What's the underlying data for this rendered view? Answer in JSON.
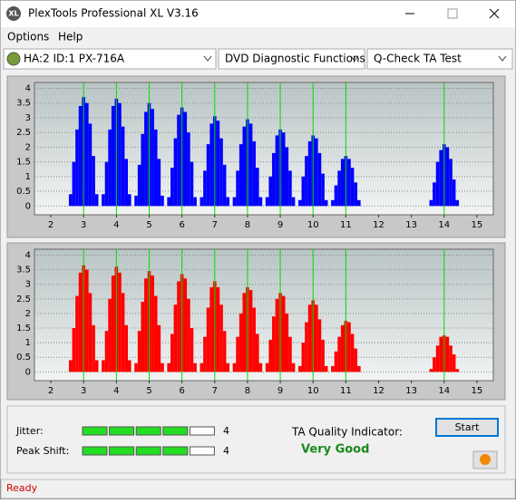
{
  "window": {
    "icon": "XL",
    "title": "PlexTools Professional XL V3.16"
  },
  "menu": [
    "Options",
    "Help"
  ],
  "toolbar": {
    "drive": "HA:2 ID:1  PX-716A",
    "function": "DVD Diagnostic Functions",
    "test": "Q-Check TA Test"
  },
  "results": {
    "jitter_label": "Jitter:",
    "jitter": 4,
    "peak_shift_label": "Peak Shift:",
    "peak_shift": 4,
    "ta_label": "TA Quality Indicator:",
    "ta_value": "Very Good"
  },
  "buttons": {
    "start": "Start"
  },
  "status": "Ready",
  "chart_data": [
    {
      "type": "bar",
      "color": "#0000ff",
      "marker_color": "#00dd00",
      "x": [
        2.6,
        2.7,
        2.8,
        2.9,
        3.0,
        3.1,
        3.2,
        3.3,
        3.4,
        3.6,
        3.7,
        3.8,
        3.9,
        4.0,
        4.1,
        4.2,
        4.3,
        4.4,
        4.6,
        4.7,
        4.8,
        4.9,
        5.0,
        5.1,
        5.2,
        5.3,
        5.4,
        5.6,
        5.7,
        5.8,
        5.9,
        6.0,
        6.1,
        6.2,
        6.3,
        6.4,
        6.6,
        6.7,
        6.8,
        6.9,
        7.0,
        7.1,
        7.2,
        7.3,
        7.4,
        7.6,
        7.7,
        7.8,
        7.9,
        8.0,
        8.1,
        8.2,
        8.3,
        8.4,
        8.6,
        8.7,
        8.8,
        8.9,
        9.0,
        9.1,
        9.2,
        9.3,
        9.4,
        9.6,
        9.7,
        9.8,
        9.9,
        10.0,
        10.1,
        10.2,
        10.3,
        10.4,
        10.6,
        10.7,
        10.8,
        10.9,
        11.0,
        11.1,
        11.2,
        11.3,
        11.4,
        13.6,
        13.7,
        13.8,
        13.9,
        14.0,
        14.1,
        14.2,
        14.3,
        14.4
      ],
      "values": [
        0.4,
        1.5,
        2.6,
        3.4,
        3.7,
        3.5,
        2.8,
        1.7,
        0.4,
        0.4,
        1.5,
        2.6,
        3.4,
        3.65,
        3.5,
        2.7,
        1.6,
        0.4,
        0.35,
        1.4,
        2.45,
        3.2,
        3.5,
        3.3,
        2.6,
        1.6,
        0.35,
        0.3,
        1.3,
        2.3,
        3.1,
        3.35,
        3.2,
        2.5,
        1.5,
        0.3,
        0.3,
        1.2,
        2.1,
        2.8,
        3.05,
        2.9,
        2.3,
        1.4,
        0.3,
        0.3,
        1.2,
        2.1,
        2.7,
        2.95,
        2.8,
        2.2,
        1.3,
        0.3,
        0.3,
        1.0,
        1.8,
        2.4,
        2.6,
        2.5,
        2.0,
        1.2,
        0.3,
        0.2,
        1.0,
        1.7,
        2.2,
        2.4,
        2.3,
        1.8,
        1.1,
        0.2,
        0.2,
        0.7,
        1.2,
        1.6,
        1.7,
        1.6,
        1.3,
        0.8,
        0.2,
        0.2,
        0.8,
        1.5,
        1.9,
        2.1,
        2.0,
        1.6,
        0.9,
        0.2
      ],
      "markers": [
        3,
        4,
        5,
        6,
        7,
        8,
        9,
        10,
        11,
        14
      ],
      "xlim": [
        1.5,
        15.5
      ],
      "ylim": [
        -0.3,
        4.2
      ],
      "xticks": [
        2,
        3,
        4,
        5,
        6,
        7,
        8,
        9,
        10,
        11,
        12,
        13,
        14,
        15
      ],
      "yticks": [
        0,
        0.5,
        1,
        1.5,
        2,
        2.5,
        3,
        3.5,
        4
      ],
      "grid": true
    },
    {
      "type": "bar",
      "color": "#ff0000",
      "marker_color": "#00dd00",
      "x": [
        2.6,
        2.7,
        2.8,
        2.9,
        3.0,
        3.1,
        3.2,
        3.3,
        3.4,
        3.6,
        3.7,
        3.8,
        3.9,
        4.0,
        4.1,
        4.2,
        4.3,
        4.4,
        4.6,
        4.7,
        4.8,
        4.9,
        5.0,
        5.1,
        5.2,
        5.3,
        5.4,
        5.6,
        5.7,
        5.8,
        5.9,
        6.0,
        6.1,
        6.2,
        6.3,
        6.4,
        6.6,
        6.7,
        6.8,
        6.9,
        7.0,
        7.1,
        7.2,
        7.3,
        7.4,
        7.6,
        7.7,
        7.8,
        7.9,
        8.0,
        8.1,
        8.2,
        8.3,
        8.4,
        8.6,
        8.7,
        8.8,
        8.9,
        9.0,
        9.1,
        9.2,
        9.3,
        9.4,
        9.6,
        9.7,
        9.8,
        9.9,
        10.0,
        10.1,
        10.2,
        10.3,
        10.4,
        10.6,
        10.7,
        10.8,
        10.9,
        11.0,
        11.1,
        11.2,
        11.3,
        11.4,
        13.6,
        13.7,
        13.8,
        13.9,
        14.0,
        14.1,
        14.2,
        14.3,
        14.4
      ],
      "values": [
        0.4,
        1.5,
        2.6,
        3.4,
        3.65,
        3.5,
        2.7,
        1.6,
        0.4,
        0.4,
        1.4,
        2.5,
        3.3,
        3.6,
        3.4,
        2.7,
        1.6,
        0.4,
        0.3,
        1.4,
        2.4,
        3.2,
        3.45,
        3.3,
        2.6,
        1.6,
        0.3,
        0.3,
        1.3,
        2.3,
        3.1,
        3.35,
        3.2,
        2.5,
        1.5,
        0.3,
        0.3,
        1.2,
        2.2,
        2.9,
        3.1,
        2.9,
        2.3,
        1.4,
        0.3,
        0.3,
        1.2,
        2.0,
        2.7,
        2.9,
        2.8,
        2.2,
        1.3,
        0.3,
        0.3,
        1.1,
        1.9,
        2.5,
        2.7,
        2.6,
        2.0,
        1.2,
        0.3,
        0.2,
        1.0,
        1.7,
        2.3,
        2.45,
        2.3,
        1.8,
        1.1,
        0.2,
        0.2,
        0.7,
        1.2,
        1.6,
        1.75,
        1.7,
        1.3,
        0.8,
        0.2,
        0.1,
        0.5,
        0.9,
        1.2,
        1.25,
        1.2,
        0.9,
        0.6,
        0.1
      ],
      "markers": [
        3,
        4,
        5,
        6,
        7,
        8,
        9,
        10,
        11,
        14
      ],
      "xlim": [
        1.5,
        15.5
      ],
      "ylim": [
        -0.3,
        4.2
      ],
      "xticks": [
        2,
        3,
        4,
        5,
        6,
        7,
        8,
        9,
        10,
        11,
        12,
        13,
        14,
        15
      ],
      "yticks": [
        0,
        0.5,
        1,
        1.5,
        2,
        2.5,
        3,
        3.5,
        4
      ],
      "grid": true
    }
  ]
}
